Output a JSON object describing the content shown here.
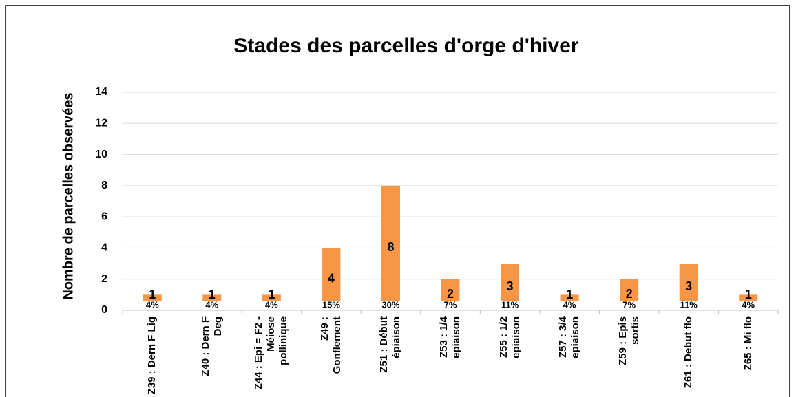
{
  "chart_data": {
    "type": "bar",
    "title": "Stades des parcelles d'orge d'hiver",
    "y_label": "Nombre de parcelles  observées",
    "categories": [
      "Z39 : Dern F Lig",
      "Z40 : Dern F Deg",
      "Z44 : Epi = F2 - Méiose pollinique",
      "Z49 : Gonflement",
      "Z51 : Début épiaison",
      "Z53 : 1/4 epiaison",
      "Z55 : 1/2 epiaison",
      "Z57 : 3/4 epiaison",
      "Z59 : Epis sortis",
      "Z61 : Debut flo",
      "Z65 : Mi flo"
    ],
    "values": [
      1,
      1,
      1,
      4,
      8,
      2,
      3,
      1,
      2,
      3,
      1
    ],
    "percent_values": [
      4,
      4,
      4,
      15,
      30,
      7,
      11,
      4,
      7,
      11,
      4
    ],
    "percent_labels": [
      "4%",
      "4%",
      "4%",
      "15%",
      "30%",
      "7%",
      "11%",
      "4%",
      "7%",
      "11%",
      "4%"
    ],
    "color": "#f79646",
    "ylim": [
      0,
      14
    ],
    "yticks": [
      0,
      2,
      4,
      6,
      8,
      10,
      12,
      14
    ],
    "grid": true
  }
}
